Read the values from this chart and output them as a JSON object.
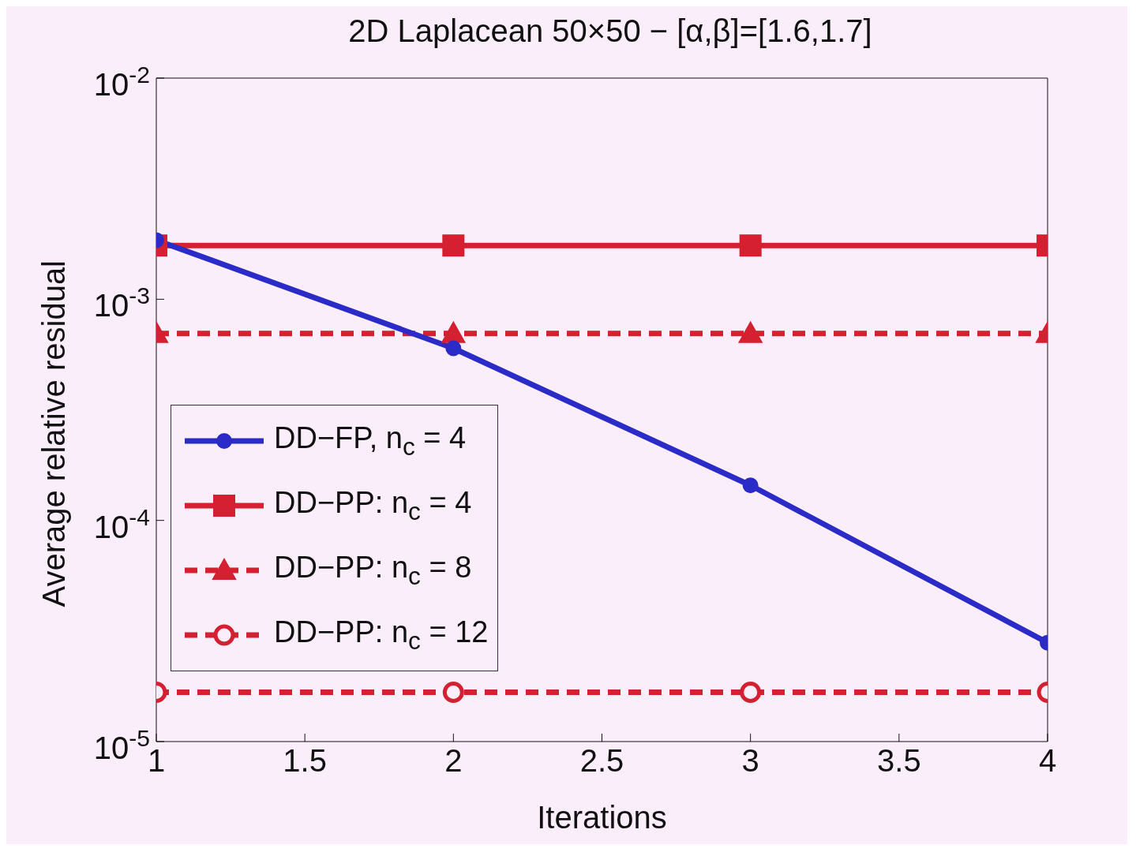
{
  "chart_data": {
    "type": "line",
    "title": "2D Laplacean 50×50 − [α,β]=[1.6,1.7]",
    "xlabel": "Iterations",
    "ylabel": "Average relative residual",
    "x": [
      1,
      2,
      3,
      4
    ],
    "series": [
      {
        "name": "DD−FP, n$_{c}$ = 4",
        "color": "#2b2bc8",
        "values": [
          0.00185,
          0.0006,
          0.000144,
          2.8e-05
        ],
        "marker": "circle",
        "line_style": "solid"
      },
      {
        "name": "DD−PP: n$_{c}$ = 4",
        "color": "#d42030",
        "values": [
          0.00175,
          0.00175,
          0.00175,
          0.00175
        ],
        "marker": "square",
        "line_style": "solid"
      },
      {
        "name": "DD−PP: n$_{c}$ = 8",
        "color": "#d42030",
        "values": [
          0.0007,
          0.0007,
          0.0007,
          0.0007
        ],
        "marker": "triangle",
        "line_style": "dashed"
      },
      {
        "name": "DD−PP: n$_{c}$ = 12",
        "color": "#d42030",
        "values": [
          1.67e-05,
          1.67e-05,
          1.67e-05,
          1.67e-05
        ],
        "marker": "circle",
        "line_style": "dashed"
      }
    ],
    "xlim": [
      1,
      4
    ],
    "xticks": [
      1,
      1.5,
      2,
      2.5,
      3,
      3.5,
      4
    ],
    "ylim": [
      1e-05,
      0.01
    ],
    "yticks": [
      {
        "value": 1e-05,
        "label": "10$^{-5}$"
      },
      {
        "value": 0.0001,
        "label": "10$^{-4}$"
      },
      {
        "value": 0.001,
        "label": "10$^{-3}$"
      },
      {
        "value": 0.01,
        "label": "10$^{-2}$"
      }
    ],
    "log": "y",
    "legend": "left"
  }
}
